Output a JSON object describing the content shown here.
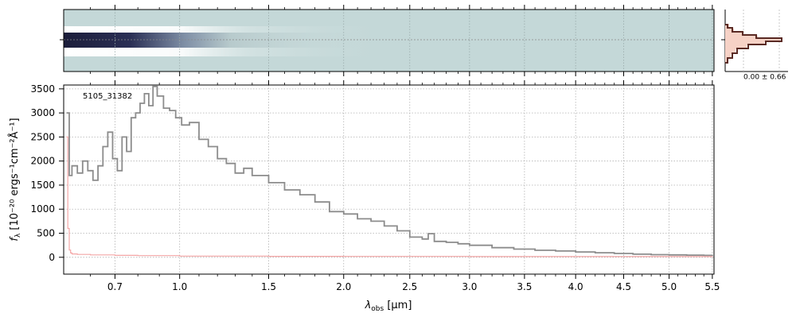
{
  "chart_data": {
    "type": "line",
    "object_id": "5105_31382",
    "xlabel_main": "λ",
    "xlabel_sub": "obs",
    "xlabel_unit": " [μm]",
    "ylabel_main": "f",
    "ylabel_sub": "λ",
    "ylabel_unit": " [10⁻²⁰ ergs⁻¹cm⁻²Å⁻¹]",
    "x_scale": "sqrt",
    "xlim": [
      0.5,
      5.52
    ],
    "ylim": [
      -350,
      3580
    ],
    "x_ticks": [
      0.7,
      1.0,
      1.5,
      2.0,
      2.5,
      3.0,
      3.5,
      4.0,
      4.5,
      5.0,
      5.5
    ],
    "x_tick_labels": [
      "0.7",
      "1.0",
      "1.5",
      "2.0",
      "2.5",
      "3.0",
      "3.5",
      "4.0",
      "4.5",
      "5.0",
      "5.5"
    ],
    "y_ticks": [
      0,
      500,
      1000,
      1500,
      2000,
      2500,
      3000,
      3500
    ],
    "y_tick_labels": [
      "0",
      "500",
      "1000",
      "1500",
      "2000",
      "2500",
      "3000",
      "3500"
    ],
    "grid": true,
    "series": [
      {
        "color": "#8c8c8c",
        "x": [
          0.51,
          0.52,
          0.53,
          0.55,
          0.57,
          0.59,
          0.61,
          0.63,
          0.65,
          0.67,
          0.69,
          0.71,
          0.73,
          0.75,
          0.77,
          0.79,
          0.81,
          0.83,
          0.85,
          0.87,
          0.89,
          0.92,
          0.95,
          0.98,
          1.01,
          1.05,
          1.1,
          1.15,
          1.2,
          1.25,
          1.3,
          1.35,
          1.4,
          1.45,
          1.5,
          1.6,
          1.7,
          1.8,
          1.9,
          2.0,
          2.1,
          2.2,
          2.3,
          2.4,
          2.5,
          2.6,
          2.65,
          2.7,
          2.8,
          2.9,
          3.0,
          3.2,
          3.4,
          3.6,
          3.8,
          4.0,
          4.2,
          4.4,
          4.6,
          4.8,
          5.0,
          5.2,
          5.4,
          5.5
        ],
        "y": [
          3000,
          1700,
          1900,
          1750,
          2000,
          1800,
          1600,
          1900,
          2300,
          2600,
          2050,
          1800,
          2500,
          2200,
          2900,
          3000,
          3200,
          3400,
          3150,
          3550,
          3350,
          3100,
          3050,
          2900,
          2750,
          2800,
          2450,
          2300,
          2050,
          1950,
          1750,
          1850,
          1700,
          1700,
          1550,
          1400,
          1300,
          1150,
          950,
          900,
          800,
          750,
          650,
          550,
          420,
          380,
          490,
          330,
          310,
          280,
          250,
          200,
          170,
          145,
          130,
          110,
          95,
          80,
          65,
          55,
          50,
          45,
          40,
          50
        ]
      },
      {
        "color": "#f4a6a6",
        "x": [
          0.51,
          0.515,
          0.52,
          0.525,
          0.53,
          0.55,
          0.6,
          0.7,
          0.8,
          1.0,
          1.5,
          2.0,
          3.0,
          4.0,
          5.0,
          5.5
        ],
        "y": [
          2500,
          600,
          150,
          90,
          70,
          60,
          50,
          40,
          35,
          25,
          20,
          18,
          15,
          15,
          15,
          20
        ]
      }
    ],
    "side_panel": {
      "label": "0.00 ± 0.66"
    }
  }
}
